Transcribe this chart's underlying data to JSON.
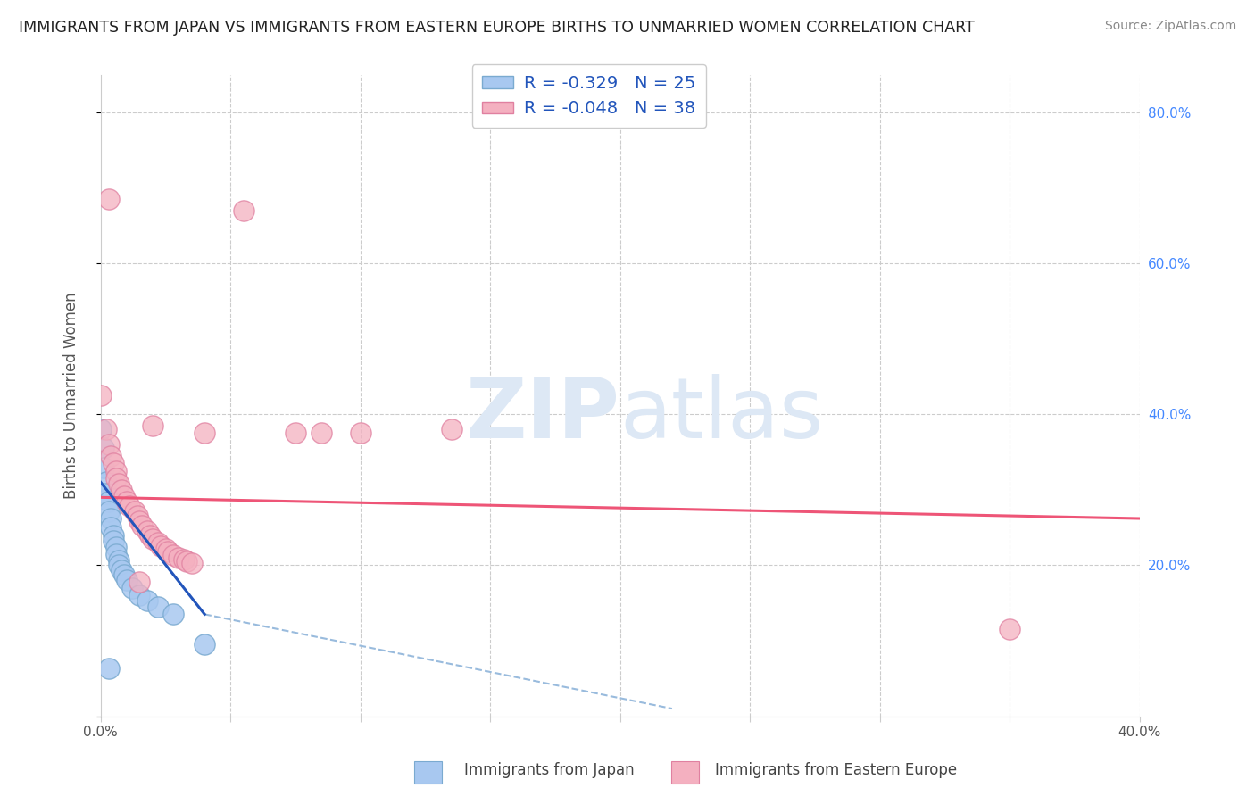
{
  "title": "IMMIGRANTS FROM JAPAN VS IMMIGRANTS FROM EASTERN EUROPE BIRTHS TO UNMARRIED WOMEN CORRELATION CHART",
  "source": "Source: ZipAtlas.com",
  "ylabel": "Births to Unmarried Women",
  "xlabel_japan": "Immigrants from Japan",
  "xlabel_eastern": "Immigrants from Eastern Europe",
  "xlim": [
    0.0,
    0.4
  ],
  "ylim": [
    0.0,
    0.85
  ],
  "legend_R_japan": "-0.329",
  "legend_N_japan": "25",
  "legend_R_eastern": "-0.048",
  "legend_N_eastern": "38",
  "japan_color": "#a8c8f0",
  "japan_edge_color": "#7aaad0",
  "eastern_color": "#f4b0c0",
  "eastern_edge_color": "#e080a0",
  "japan_line_color": "#2255bb",
  "eastern_line_color": "#ee5577",
  "dashed_line_color": "#99bbdd",
  "background_color": "#ffffff",
  "grid_color": "#cccccc",
  "right_axis_color": "#4488ff",
  "watermark_color": "#dde8f5",
  "japan_pts": [
    [
      0.0,
      0.38
    ],
    [
      0.001,
      0.355
    ],
    [
      0.001,
      0.33
    ],
    [
      0.002,
      0.31
    ],
    [
      0.002,
      0.295
    ],
    [
      0.003,
      0.285
    ],
    [
      0.003,
      0.272
    ],
    [
      0.004,
      0.262
    ],
    [
      0.004,
      0.25
    ],
    [
      0.005,
      0.24
    ],
    [
      0.005,
      0.232
    ],
    [
      0.006,
      0.224
    ],
    [
      0.006,
      0.215
    ],
    [
      0.007,
      0.207
    ],
    [
      0.007,
      0.2
    ],
    [
      0.008,
      0.193
    ],
    [
      0.009,
      0.187
    ],
    [
      0.01,
      0.18
    ],
    [
      0.012,
      0.17
    ],
    [
      0.015,
      0.16
    ],
    [
      0.018,
      0.153
    ],
    [
      0.022,
      0.145
    ],
    [
      0.028,
      0.135
    ],
    [
      0.04,
      0.095
    ],
    [
      0.003,
      0.063
    ]
  ],
  "eastern_pts": [
    [
      0.0,
      0.425
    ],
    [
      0.002,
      0.38
    ],
    [
      0.003,
      0.36
    ],
    [
      0.004,
      0.345
    ],
    [
      0.005,
      0.335
    ],
    [
      0.006,
      0.325
    ],
    [
      0.006,
      0.315
    ],
    [
      0.007,
      0.308
    ],
    [
      0.008,
      0.3
    ],
    [
      0.009,
      0.292
    ],
    [
      0.01,
      0.285
    ],
    [
      0.011,
      0.278
    ],
    [
      0.013,
      0.272
    ],
    [
      0.014,
      0.265
    ],
    [
      0.015,
      0.258
    ],
    [
      0.016,
      0.252
    ],
    [
      0.018,
      0.246
    ],
    [
      0.019,
      0.24
    ],
    [
      0.02,
      0.235
    ],
    [
      0.022,
      0.23
    ],
    [
      0.023,
      0.225
    ],
    [
      0.025,
      0.222
    ],
    [
      0.026,
      0.218
    ],
    [
      0.028,
      0.214
    ],
    [
      0.03,
      0.21
    ],
    [
      0.032,
      0.208
    ],
    [
      0.033,
      0.205
    ],
    [
      0.035,
      0.203
    ],
    [
      0.003,
      0.685
    ],
    [
      0.055,
      0.67
    ],
    [
      0.02,
      0.385
    ],
    [
      0.04,
      0.375
    ],
    [
      0.1,
      0.375
    ],
    [
      0.085,
      0.375
    ],
    [
      0.075,
      0.375
    ],
    [
      0.015,
      0.178
    ],
    [
      0.135,
      0.38
    ],
    [
      0.35,
      0.115
    ]
  ],
  "japan_line_x": [
    0.0,
    0.04
  ],
  "japan_line_y": [
    0.31,
    0.135
  ],
  "eastern_line_x": [
    0.0,
    0.4
  ],
  "eastern_line_y": [
    0.29,
    0.262
  ],
  "dashed_line_x": [
    0.04,
    0.22
  ],
  "dashed_line_y": [
    0.135,
    0.01
  ]
}
